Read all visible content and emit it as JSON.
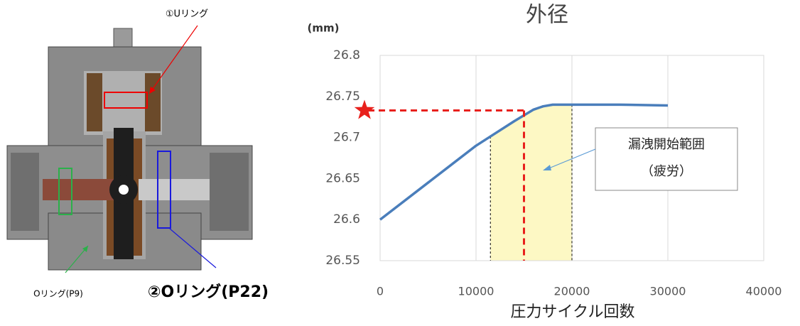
{
  "diagram": {
    "labels": [
      "①Uリング",
      "Oリング(P9)",
      "②Oリング(P22)"
    ]
  },
  "chart_data": {
    "type": "line",
    "title": "外径",
    "y_label": "(mm)",
    "x_label": "圧力サイクル回数",
    "x": [
      0,
      5000,
      10000,
      12000,
      14000,
      15000,
      16000,
      17000,
      18000,
      20000,
      25000,
      30000
    ],
    "series": [
      {
        "name": "外径",
        "color": "#4a7ebb",
        "values": [
          26.6,
          26.645,
          26.69,
          26.705,
          26.72,
          26.727,
          26.734,
          26.738,
          26.74,
          26.74,
          26.74,
          26.739
        ]
      }
    ],
    "xlim": [
      0,
      40000
    ],
    "xticks": [
      0,
      10000,
      20000,
      30000,
      40000
    ],
    "ylim": [
      26.55,
      26.8
    ],
    "yticks": [
      26.55,
      26.6,
      26.65,
      26.7,
      26.75,
      26.8
    ],
    "grid": true,
    "threshold": {
      "x": 15000,
      "y": 26.733,
      "color": "#e8201c"
    },
    "range": [
      11500,
      20000
    ],
    "range_color": "#fdf8c4",
    "annotation": [
      "漏洩開始範囲",
      "（疲労）"
    ]
  }
}
